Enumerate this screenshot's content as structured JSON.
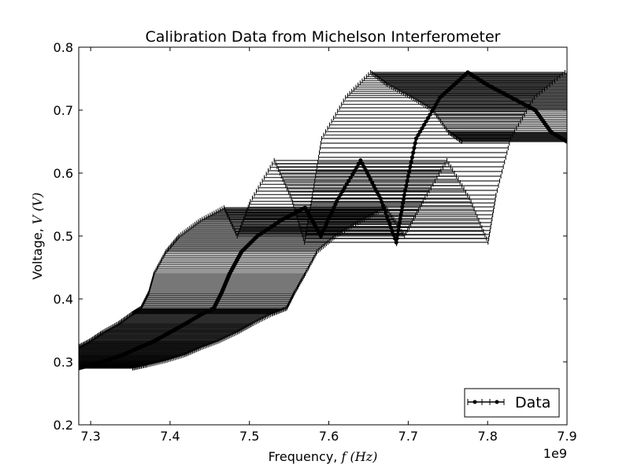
{
  "chart_data": {
    "type": "scatter",
    "title": "Calibration Data from Michelson Interferometer",
    "xlabel": {
      "prefix": "Frequency, ",
      "math": "f (Hz)"
    },
    "ylabel": {
      "prefix": "Voltage, ",
      "math": "V (V)"
    },
    "x_offset_label": "1e9",
    "xlim": [
      7.285,
      7.9
    ],
    "ylim": [
      0.2,
      0.8
    ],
    "x_ticks": [
      "7.3",
      "7.4",
      "7.5",
      "7.6",
      "7.7",
      "7.8",
      "7.9"
    ],
    "x_tick_values": [
      7.3,
      7.4,
      7.5,
      7.6,
      7.7,
      7.8,
      7.9
    ],
    "y_ticks": [
      "0.2",
      "0.3",
      "0.4",
      "0.5",
      "0.6",
      "0.7",
      "0.8"
    ],
    "y_tick_values": [
      0.2,
      0.3,
      0.4,
      0.5,
      0.6,
      0.7,
      0.8
    ],
    "grid": false,
    "legend": {
      "position": "lower-right",
      "entries": [
        "Data"
      ]
    },
    "series": [
      {
        "name": "Data",
        "x_unit_note": "x values in units of 1e9 Hz",
        "points": [
          [
            7.285,
            0.29,
            0.02
          ],
          [
            7.3,
            0.295,
            0.021
          ],
          [
            7.32,
            0.302,
            0.022
          ],
          [
            7.34,
            0.311,
            0.023
          ],
          [
            7.36,
            0.322,
            0.023
          ],
          [
            7.38,
            0.333,
            0.024
          ],
          [
            7.4,
            0.347,
            0.025
          ],
          [
            7.42,
            0.361,
            0.025
          ],
          [
            7.44,
            0.376,
            0.026
          ],
          [
            7.455,
            0.385,
            0.027
          ],
          [
            7.465,
            0.41,
            0.027
          ],
          [
            7.475,
            0.44,
            0.028
          ],
          [
            7.49,
            0.475,
            0.028
          ],
          [
            7.51,
            0.5,
            0.029
          ],
          [
            7.54,
            0.525,
            0.03
          ],
          [
            7.57,
            0.545,
            0.03
          ],
          [
            7.59,
            0.5,
            0.031
          ],
          [
            7.61,
            0.555,
            0.032
          ],
          [
            7.64,
            0.62,
            0.032
          ],
          [
            7.665,
            0.56,
            0.033
          ],
          [
            7.685,
            0.49,
            0.034
          ],
          [
            7.695,
            0.565,
            0.034
          ],
          [
            7.71,
            0.655,
            0.035
          ],
          [
            7.74,
            0.72,
            0.035
          ],
          [
            7.775,
            0.76,
            0.036
          ],
          [
            7.8,
            0.74,
            0.037
          ],
          [
            7.83,
            0.72,
            0.037
          ],
          [
            7.86,
            0.7,
            0.038
          ],
          [
            7.88,
            0.665,
            0.038
          ],
          [
            7.9,
            0.65,
            0.039
          ]
        ]
      }
    ]
  }
}
